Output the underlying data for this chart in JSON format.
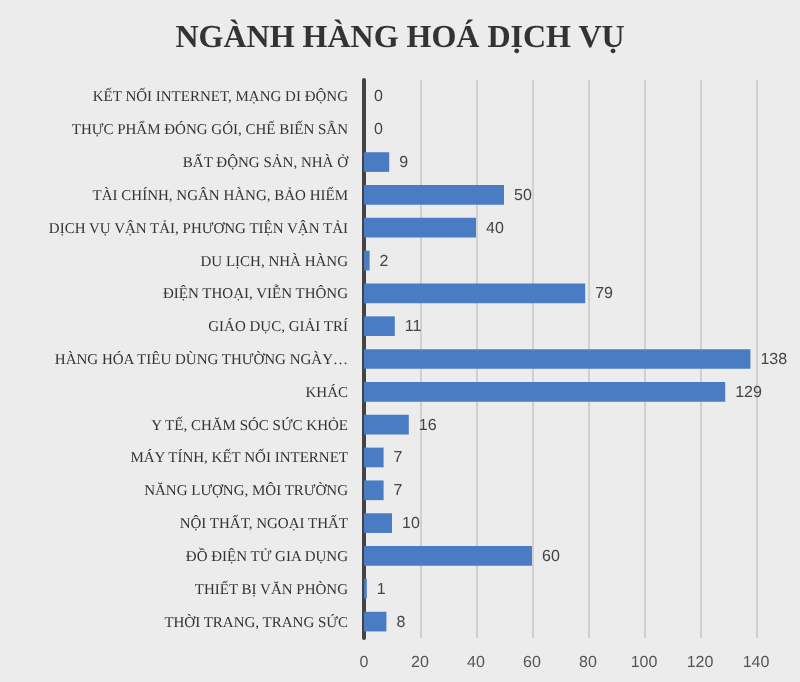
{
  "chart_data": {
    "type": "bar",
    "orientation": "horizontal",
    "title": "NGÀNH HÀNG HOÁ DỊCH VỤ",
    "categories": [
      "KẾT NỐI INTERNET, MẠNG DI ĐỘNG",
      "THỰC PHẨM ĐÓNG GÓI, CHẾ BIẾN SẴN",
      "BẤT ĐỘNG SẢN, NHÀ Ở",
      "TÀI CHÍNH, NGÂN HÀNG, BẢO HIỂM",
      "DỊCH VỤ VẬN TẢI, PHƯƠNG TIỆN VẬN TẢI",
      "DU LỊCH, NHÀ HÀNG",
      "ĐIỆN THOẠI, VIỄN THÔNG",
      "GIÁO DỤC, GIẢI TRÍ",
      "HÀNG HÓA TIÊU DÙNG THƯỜNG NGÀY…",
      "KHÁC",
      "Y TẾ, CHĂM SÓC SỨC KHỎE",
      "MÁY TÍNH, KẾT NỐI INTERNET",
      "NĂNG LƯỢNG, MÔI TRƯỜNG",
      "NỘI THẤT, NGOẠI THẤT",
      "ĐỒ ĐIỆN TỬ GIA DỤNG",
      "THIẾT BỊ VĂN PHÒNG",
      "THỜI TRANG, TRANG SỨC"
    ],
    "values": [
      0,
      0,
      9,
      50,
      40,
      2,
      79,
      11,
      138,
      129,
      16,
      7,
      7,
      10,
      60,
      1,
      8
    ],
    "color": "#4a7cc4",
    "data_labels": true,
    "xlim": [
      0,
      140
    ],
    "xticks": [
      0,
      20,
      40,
      60,
      80,
      100,
      120,
      140
    ],
    "grid": "x"
  }
}
